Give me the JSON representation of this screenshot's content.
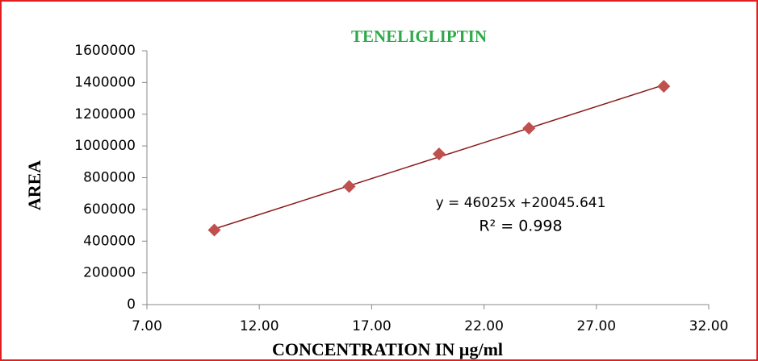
{
  "chart_data": {
    "type": "scatter",
    "title": "TENELIGLIPTIN",
    "x_label": "CONCENTRATION  IN µg/ml",
    "y_label": "AREA",
    "annotations": [
      "y = 46025x +20045.641",
      "R² = 0.998"
    ],
    "series": [
      {
        "name": "AREA",
        "color": "#c0504d",
        "x": [
          10,
          16,
          20,
          24,
          30
        ],
        "values": [
          470000,
          745000,
          950000,
          1112000,
          1376000
        ]
      }
    ],
    "trendline": true,
    "trendline_color": "#8b1a1a",
    "xlim": [
      7,
      32
    ],
    "xticks": [
      {
        "value": 7,
        "label": "7.00"
      },
      {
        "value": 12,
        "label": "12.00"
      },
      {
        "value": 17,
        "label": "17.00"
      },
      {
        "value": 22,
        "label": "22.00"
      },
      {
        "value": 27,
        "label": "27.00"
      },
      {
        "value": 32,
        "label": "32.00"
      }
    ],
    "ylim": [
      0,
      1600000
    ],
    "yticks": [
      0,
      200000,
      400000,
      600000,
      800000,
      1000000,
      1200000,
      1400000,
      1600000
    ],
    "grid": false
  }
}
